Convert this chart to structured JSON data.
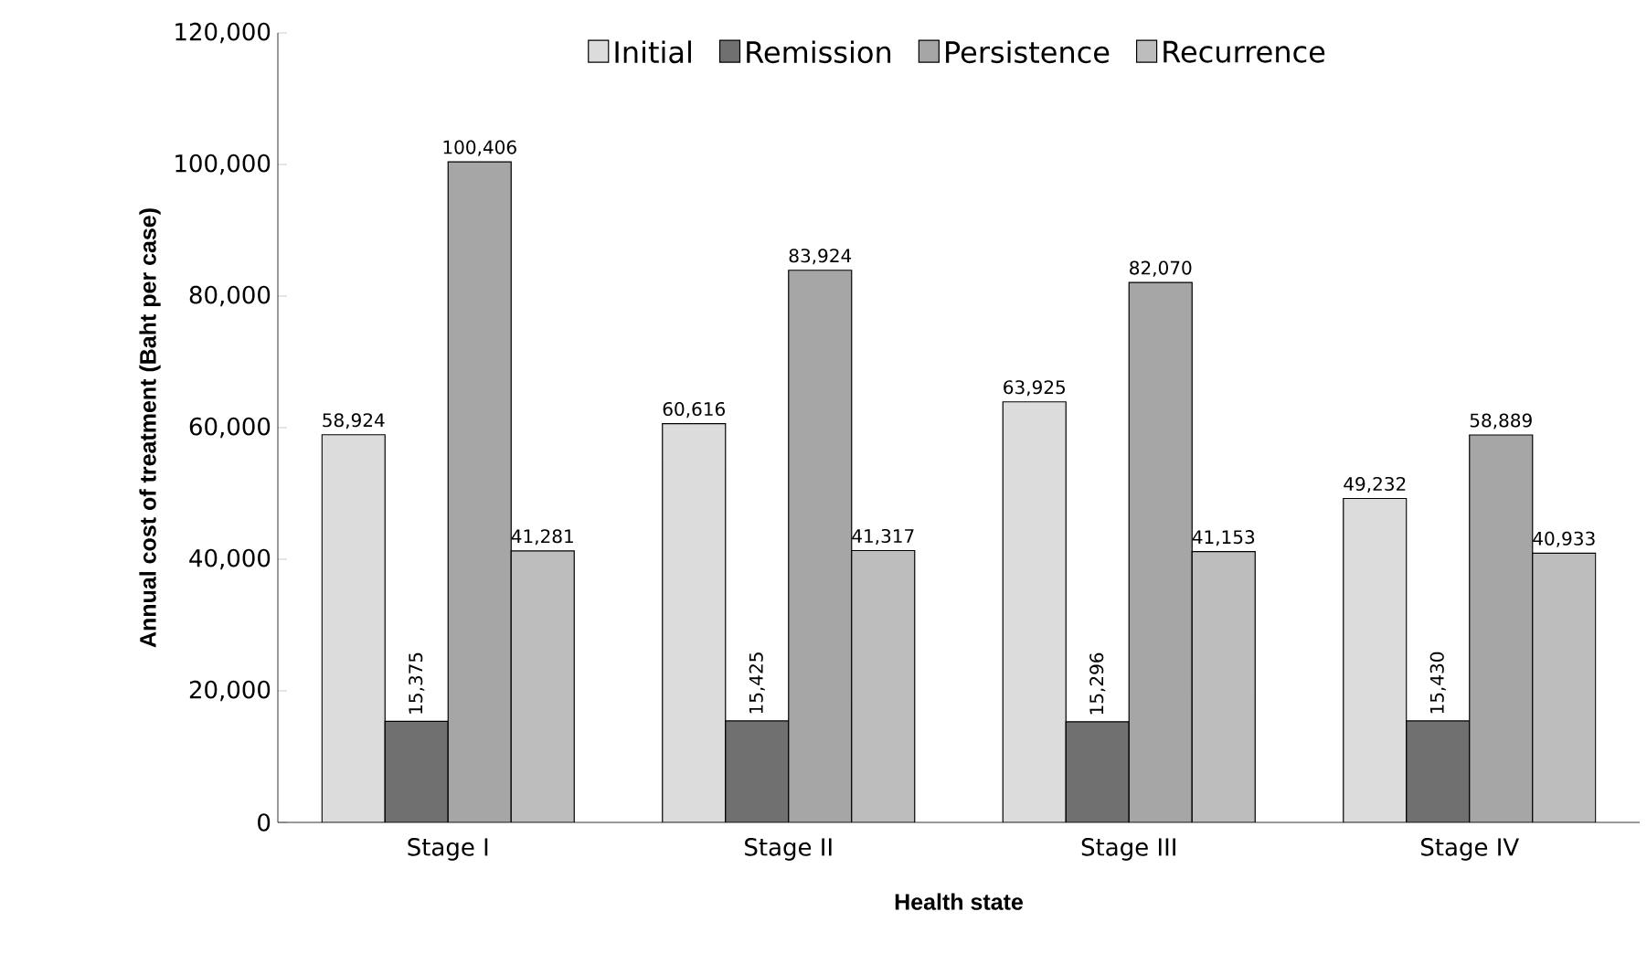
{
  "chart_data": {
    "type": "bar",
    "xlabel": "Health state",
    "ylabel": "Annual cost of treatment (Baht per case)",
    "categories": [
      "Stage I",
      "Stage II",
      "Stage III",
      "Stage IV"
    ],
    "series": [
      {
        "name": "Initial",
        "color": "#dcdcdc",
        "values": [
          58924,
          60616,
          63925,
          49232
        ],
        "value_labels": [
          "58,924",
          "60,616",
          "63,925",
          "49,232"
        ]
      },
      {
        "name": "Remission",
        "color": "#707070",
        "values": [
          15375,
          15425,
          15296,
          15430
        ],
        "value_labels": [
          "15,375",
          "15,425",
          "15,296",
          "15,430"
        ]
      },
      {
        "name": "Persistence",
        "color": "#a6a6a6",
        "values": [
          100406,
          83924,
          82070,
          58889
        ],
        "value_labels": [
          "100,406",
          "83,924",
          "82,070",
          "58,889"
        ]
      },
      {
        "name": "Recurrence",
        "color": "#bdbdbd",
        "values": [
          41281,
          41317,
          41153,
          40933
        ],
        "value_labels": [
          "41,281",
          "41,317",
          "41,153",
          "40,933"
        ]
      }
    ],
    "ylim": [
      0,
      120000
    ],
    "yticks": [
      0,
      {
        "value": 20000,
        "label": "20,000"
      },
      {
        "value": 40000,
        "label": "40,000"
      },
      {
        "value": 60000,
        "label": "60,000"
      },
      {
        "value": 80000,
        "label": "80,000"
      },
      {
        "value": 100000,
        "label": "100,000"
      },
      {
        "value": 120000,
        "label": "120,000"
      }
    ],
    "legend": "top",
    "grid": false
  }
}
